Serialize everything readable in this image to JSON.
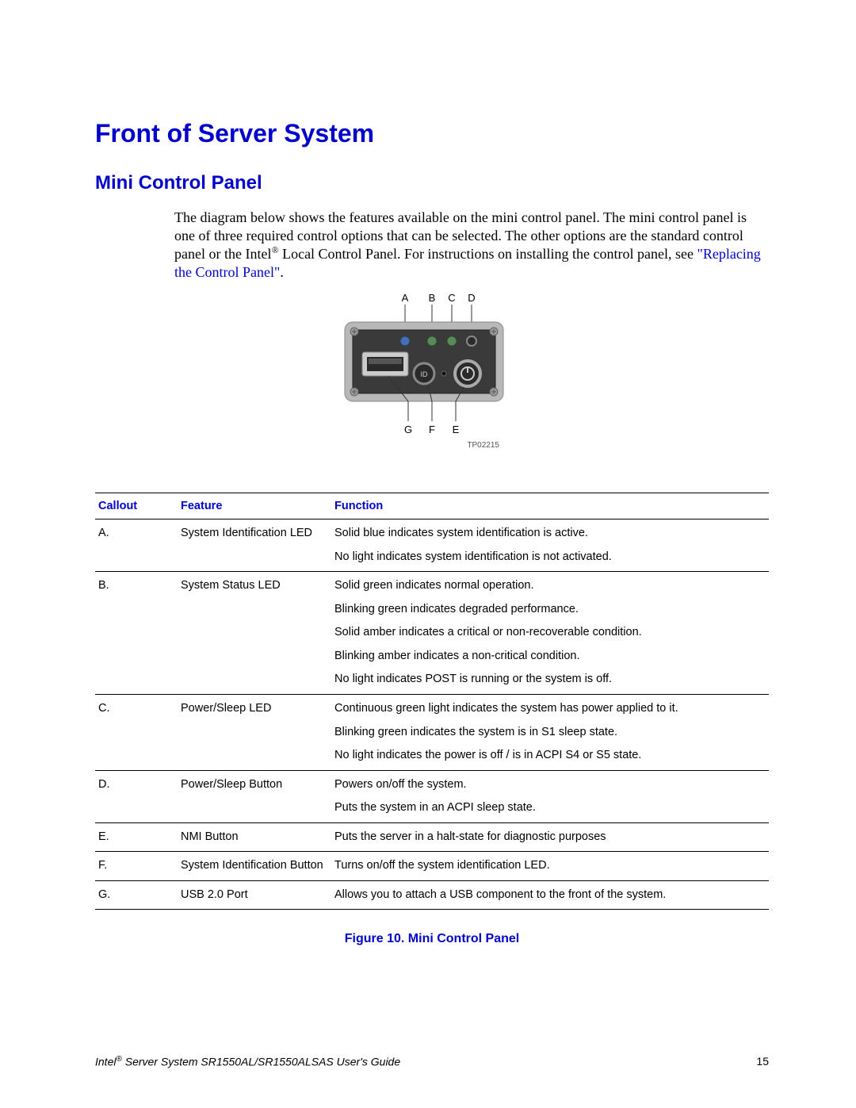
{
  "headings": {
    "main": "Front of Server System",
    "sub": "Mini Control Panel"
  },
  "paragraph": {
    "part1": "The diagram below shows the features available on the mini control panel. The mini control panel is one of three required control options that can be selected. The other options are the standard control panel or the Intel",
    "reg": "®",
    "part2": " Local Control Panel. For instructions on installing the control panel, see ",
    "link": "\"Replacing the Control Panel\"",
    "part3": "."
  },
  "diagram": {
    "top_labels": [
      "A",
      "B",
      "C",
      "D"
    ],
    "bottom_labels": [
      "G",
      "F",
      "E"
    ],
    "part_number": "TP02215",
    "colors": {
      "body_outer": "#b8b8b8",
      "body_inner": "#3a3a3a",
      "screw": "#9a9a9a",
      "usb_outer": "#cccccc",
      "usb_inner": "#2a2a2a",
      "led_blue": "#4a6fb0",
      "led_green": "#5a8a5a",
      "button_ring": "#888888",
      "button_face": "#2a2a2a",
      "power_ring": "#aaaaaa",
      "id_text": "#cccccc",
      "label_text": "#333333",
      "callout_line": "#333333"
    }
  },
  "table": {
    "headers": {
      "callout": "Callout",
      "feature": "Feature",
      "function": "Function"
    },
    "rows": [
      {
        "callout": "A.",
        "feature": "System Identification LED",
        "functions": [
          "Solid blue indicates system identification is active.",
          "No light indicates system identification is not activated."
        ]
      },
      {
        "callout": "B.",
        "feature": "System Status LED",
        "functions": [
          "Solid green indicates normal operation.",
          "Blinking green indicates degraded performance.",
          "Solid amber indicates a critical or non-recoverable condition.",
          "Blinking amber indicates a non-critical condition.",
          "No light indicates POST is running or the system is off."
        ]
      },
      {
        "callout": "C.",
        "feature": "Power/Sleep LED",
        "functions": [
          "Continuous green light indicates the system has power applied to it.",
          "Blinking green indicates the system is in S1 sleep state.",
          "No light indicates the power is off / is in ACPI S4 or S5 state."
        ]
      },
      {
        "callout": "D.",
        "feature": "Power/Sleep Button",
        "functions": [
          "Powers on/off the system.",
          "Puts the system in an ACPI sleep state."
        ]
      },
      {
        "callout": "E.",
        "feature": "NMI Button",
        "functions": [
          "Puts the server in a halt-state for diagnostic purposes"
        ]
      },
      {
        "callout": "F.",
        "feature": "System Identification Button",
        "functions": [
          "Turns on/off the system identification LED."
        ]
      },
      {
        "callout": "G.",
        "feature": "USB 2.0 Port",
        "functions": [
          "Allows you to attach a USB component to the front of the system."
        ]
      }
    ]
  },
  "figure_caption": "Figure 10. Mini Control Panel",
  "footer": {
    "left_pre": "Intel",
    "left_reg": "®",
    "left_post": " Server System SR1550AL/SR1550ALSAS User's Guide",
    "page": "15"
  }
}
